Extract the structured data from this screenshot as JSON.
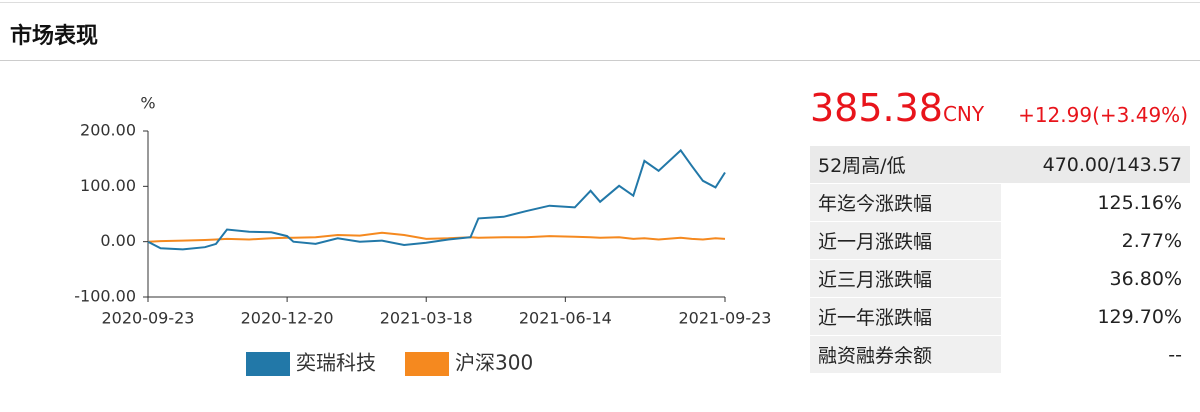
{
  "header": {
    "title": "市场表现"
  },
  "chart_data": {
    "type": "line",
    "y_unit": "%",
    "x": [
      "2020-09-23",
      "2020-10-01",
      "2020-10-15",
      "2020-10-29",
      "2020-11-05",
      "2020-11-12",
      "2020-11-26",
      "2020-12-10",
      "2020-12-20",
      "2020-12-24",
      "2021-01-07",
      "2021-01-21",
      "2021-02-04",
      "2021-02-18",
      "2021-03-04",
      "2021-03-18",
      "2021-04-01",
      "2021-04-15",
      "2021-04-20",
      "2021-05-06",
      "2021-05-20",
      "2021-06-04",
      "2021-06-20",
      "2021-06-30",
      "2021-07-06",
      "2021-07-18",
      "2021-07-27",
      "2021-08-03",
      "2021-08-12",
      "2021-08-26",
      "2021-09-02",
      "2021-09-09",
      "2021-09-17",
      "2021-09-23"
    ],
    "series": [
      {
        "name": "奕瑞科技",
        "color": "#2278a8",
        "values": [
          0,
          -12,
          -14,
          -10,
          -4,
          22,
          18,
          17,
          10,
          0,
          -4,
          6,
          0,
          2,
          -6,
          -2,
          4,
          8,
          42,
          45,
          55,
          65,
          62,
          92,
          72,
          101,
          83,
          146,
          128,
          165,
          137,
          110,
          98,
          125
        ]
      },
      {
        "name": "沪深300",
        "color": "#f5891f",
        "values": [
          0,
          1,
          2,
          3,
          4,
          5,
          4,
          6,
          7,
          7,
          8,
          12,
          11,
          16,
          12,
          5,
          6,
          8,
          7,
          8,
          8,
          10,
          9,
          8,
          7,
          8,
          5,
          6,
          4,
          7,
          5,
          4,
          6,
          5
        ]
      }
    ],
    "xlim": [
      "2020-09-23",
      "2021-09-23"
    ],
    "xticks": [
      "2020-09-23",
      "2020-12-20",
      "2021-03-18",
      "2021-06-14",
      "2021-09-23"
    ],
    "ylim": [
      -100,
      200
    ],
    "yticks": [
      {
        "value": -100,
        "label": "-100.00"
      },
      {
        "value": 0,
        "label": "0.00"
      },
      {
        "value": 100,
        "label": "100.00"
      },
      {
        "value": 200,
        "label": "200.00"
      }
    ]
  },
  "quote": {
    "price": "385.38",
    "currency": "CNY",
    "change": "+12.99(+3.49%)"
  },
  "table": {
    "rows": [
      [
        "52周高/低",
        "470.00/143.57"
      ],
      [
        "年迄今涨跌幅",
        "125.16%"
      ],
      [
        "近一月涨跌幅",
        "2.77%"
      ],
      [
        "近三月涨跌幅",
        "36.80%"
      ],
      [
        "近一年涨跌幅",
        "129.70%"
      ],
      [
        "融资融券余额",
        "--"
      ]
    ]
  }
}
